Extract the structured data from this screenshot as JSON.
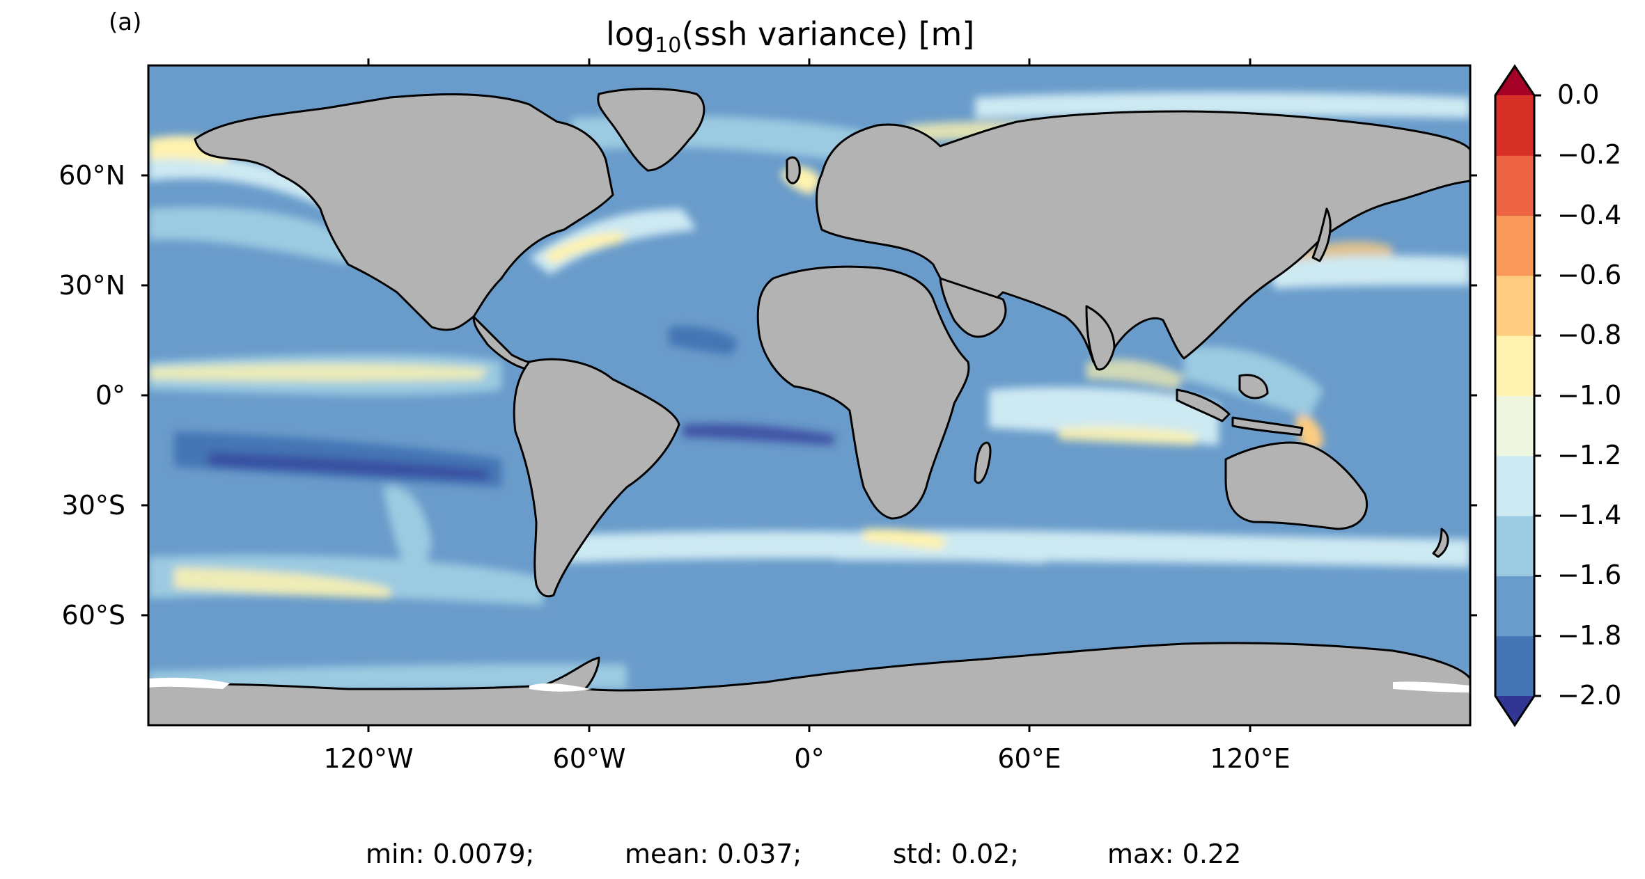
{
  "panel_label": "(a)",
  "title": {
    "prefix": "log",
    "subscript": "10",
    "suffix": "(ssh variance) [m]"
  },
  "map": {
    "projection": "PlateCarree",
    "lon_range": [
      -180,
      180
    ],
    "lat_range": [
      -90,
      90
    ],
    "land_color": "#b3b3b3",
    "coastline_color": "#000000",
    "lat_ticks": [
      "60°N",
      "30°N",
      "0°",
      "30°S",
      "60°S"
    ],
    "lon_ticks": [
      "120°W",
      "60°W",
      "0°",
      "60°E",
      "120°E"
    ]
  },
  "colorbar": {
    "colormap": "RdYlBu_r",
    "extend": "both",
    "range": [
      -2.0,
      0.0
    ],
    "levels": [
      -2.0,
      -1.8,
      -1.6,
      -1.4,
      -1.2,
      -1.0,
      -0.8,
      -0.6,
      -0.4,
      -0.2,
      0.0
    ],
    "tick_labels": [
      "0.0",
      "−0.2",
      "−0.4",
      "−0.6",
      "−0.8",
      "−1.0",
      "−1.2",
      "−1.4",
      "−1.6",
      "−1.8",
      "−2.0"
    ],
    "colors": [
      "#4575b4",
      "#6a9ccb",
      "#9ccae1",
      "#cde9f2",
      "#eef6e0",
      "#fef2ae",
      "#fdcc80",
      "#f99a5a",
      "#ee6545",
      "#d73027"
    ],
    "under_color": "#313695",
    "over_color": "#a50026"
  },
  "stats": {
    "min": "min: 0.0079;",
    "mean": "mean: 0.037;",
    "std": "std: 0.02;",
    "max": "max: 0.22"
  }
}
